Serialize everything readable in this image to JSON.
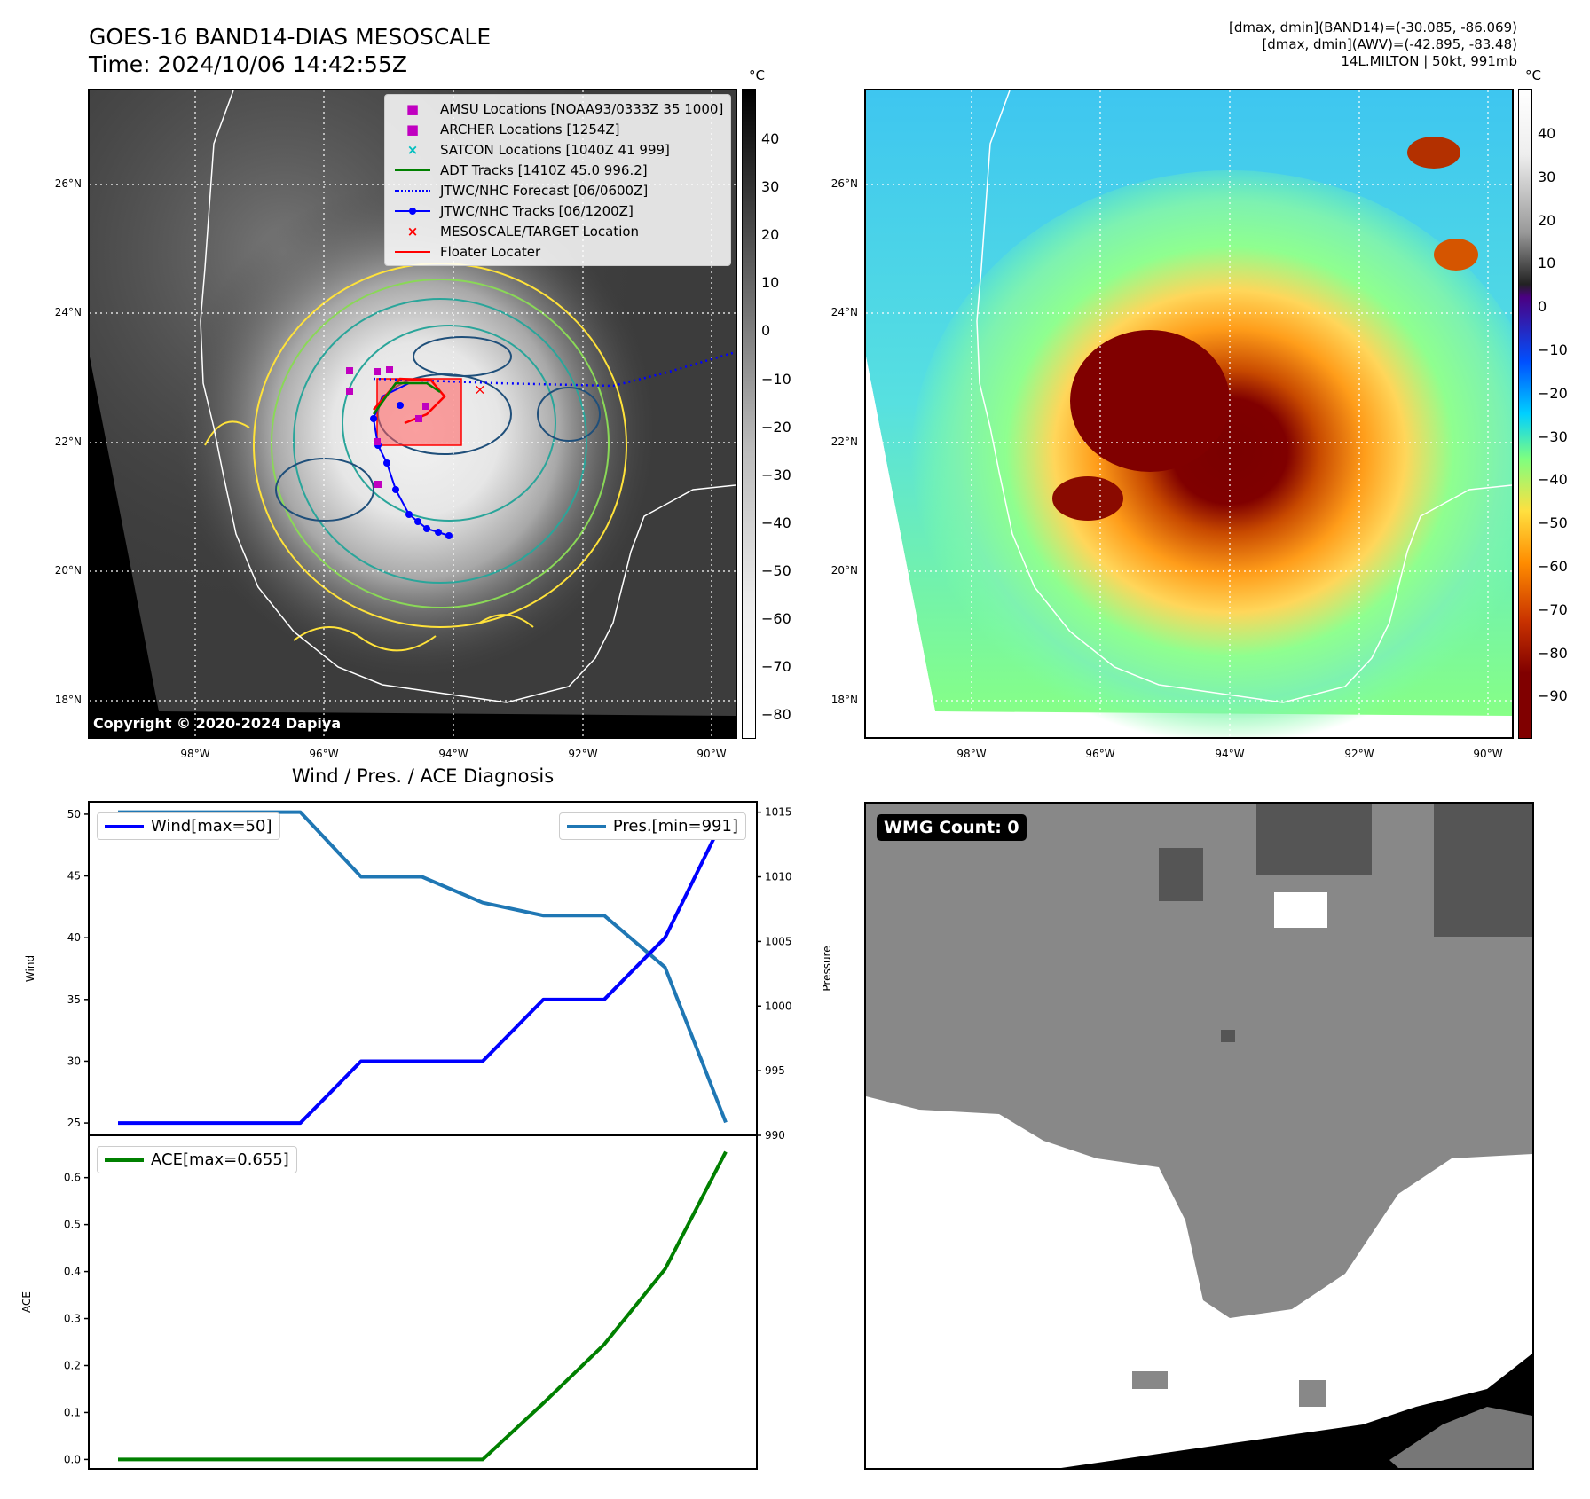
{
  "header": {
    "title_line1": "GOES-16 BAND14-DIAS MESOSCALE",
    "title_line2": "Time: 2024/10/06 14:42:55Z",
    "info_line1": "[dmax, dmin](BAND14)=(-30.085, -86.069)",
    "info_line2": "[dmax, dmin](AWV)=(-42.895, -83.48)",
    "info_line3": "14L.MILTON | 50kt, 991mb"
  },
  "map_left": {
    "lat_labels": [
      "26°N",
      "24°N",
      "22°N",
      "20°N",
      "18°N"
    ],
    "lon_labels": [
      "98°W",
      "96°W",
      "94°W",
      "92°W",
      "90°W"
    ],
    "colorbar_unit": "°C",
    "colorbar_ticks": [
      "40",
      "30",
      "20",
      "10",
      "0",
      "−10",
      "−20",
      "−30",
      "−40",
      "−50",
      "−60",
      "−70",
      "−80"
    ],
    "copyright": "Copyright © 2020-2024 Dapiya",
    "legend": [
      {
        "marker": "■",
        "color": "#c000c0",
        "label": "AMSU Locations [NOAA93/0333Z 35 1000]"
      },
      {
        "marker": "■",
        "color": "#c000c0",
        "label": "ARCHER Locations [1254Z]"
      },
      {
        "marker": "×",
        "color": "#00bfbf",
        "label": "SATCON Locations [1040Z 41 999]"
      },
      {
        "marker": "line",
        "color": "#008000",
        "label": "ADT Tracks [1410Z 45.0 996.2]"
      },
      {
        "marker": "dotted",
        "color": "#0000ff",
        "label": "JTWC/NHC Forecast [06/0600Z]"
      },
      {
        "marker": "linedot",
        "color": "#0000ff",
        "label": "JTWC/NHC Tracks [06/1200Z]"
      },
      {
        "marker": "×",
        "color": "#ff0000",
        "label": "MESOSCALE/TARGET Location"
      },
      {
        "marker": "line",
        "color": "#ff0000",
        "label": "Floater Locater"
      }
    ]
  },
  "map_right": {
    "lat_labels": [
      "26°N",
      "24°N",
      "22°N",
      "20°N",
      "18°N"
    ],
    "lon_labels": [
      "98°W",
      "96°W",
      "94°W",
      "92°W",
      "90°W"
    ],
    "colorbar_unit": "°C",
    "colorbar_ticks": [
      "40",
      "30",
      "20",
      "10",
      "0",
      "−10",
      "−20",
      "−30",
      "−40",
      "−50",
      "−60",
      "−70",
      "−80",
      "−90"
    ]
  },
  "wmg_panel": {
    "label": "WMG Count: 0"
  },
  "chart_data": [
    {
      "type": "line",
      "title": "Wind / Pres. / ACE Diagnosis",
      "ylabel": "Wind",
      "y2label": "Pressure",
      "ylim": [
        24,
        51
      ],
      "y2lim": [
        990,
        1015.8
      ],
      "yticks": [
        25,
        30,
        35,
        40,
        45,
        50
      ],
      "y2ticks": [
        990,
        995,
        1000,
        1005,
        1010,
        1015
      ],
      "grid": false,
      "legend_placement": "top-left / top-right",
      "series": [
        {
          "name": "Wind[max=50]",
          "axis": "left",
          "color": "#0000ff",
          "values": [
            25,
            25,
            25,
            25,
            30,
            30,
            30,
            35,
            35,
            40,
            50
          ]
        },
        {
          "name": "Pres.[min=991]",
          "axis": "right",
          "color": "#1f77b4",
          "values": [
            1015,
            1015,
            1015,
            1015,
            1010,
            1010,
            1008,
            1007,
            1007,
            1003,
            991
          ]
        }
      ]
    },
    {
      "type": "line",
      "ylabel": "ACE",
      "ylim": [
        -0.02,
        0.69
      ],
      "yticks": [
        "0.0",
        "0.1",
        "0.2",
        "0.3",
        "0.4",
        "0.5",
        "0.6"
      ],
      "grid": false,
      "legend_placement": "top-left",
      "series": [
        {
          "name": "ACE[max=0.655]",
          "color": "#008000",
          "values": [
            0,
            0,
            0,
            0,
            0,
            0,
            0,
            0.12,
            0.245,
            0.405,
            0.655
          ]
        }
      ]
    }
  ]
}
